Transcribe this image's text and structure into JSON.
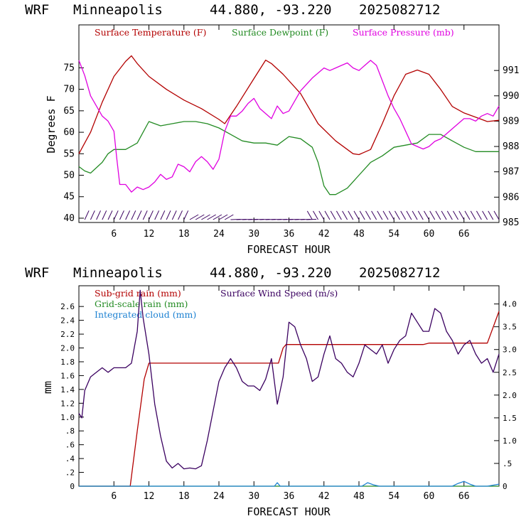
{
  "header": {
    "model": "WRF",
    "site": "Minneapolis",
    "coords": "44.880, -93.220",
    "run": "2025082712"
  },
  "colors": {
    "temperature": "#b30000",
    "dewpoint": "#238b23",
    "pressure": "#e000e0",
    "wind": "#3a0060",
    "subgrid_rain": "#b30000",
    "gridscale_rain": "#238b23",
    "cloud": "#1e82d2"
  },
  "chart_data": [
    {
      "type": "line",
      "xlabel": "FORECAST HOUR",
      "ylabel": "Degrees F",
      "xlim": [
        0,
        72
      ],
      "ylim": [
        39,
        85
      ],
      "y2lim": [
        985,
        992.8
      ],
      "x_ticks": [
        "6",
        "12",
        "18",
        "24",
        "30",
        "36",
        "42",
        "48",
        "54",
        "60",
        "66"
      ],
      "x_tick_values": [
        6,
        12,
        18,
        24,
        30,
        36,
        42,
        48,
        54,
        60,
        66
      ],
      "y_ticks": [
        "40",
        "45",
        "50",
        "55",
        "60",
        "65",
        "70",
        "75"
      ],
      "y_tick_values": [
        40,
        45,
        50,
        55,
        60,
        65,
        70,
        75
      ],
      "y2_ticks": [
        "985",
        "986",
        "987",
        "988",
        "989",
        "990",
        "991"
      ],
      "y2_tick_values": [
        985,
        986,
        987,
        988,
        989,
        990,
        991
      ],
      "legend_position": "top",
      "series": [
        {
          "name": "Surface Temperature (F)",
          "axis": "left",
          "x": [
            0,
            2,
            4,
            6,
            8,
            9,
            10,
            12,
            15,
            18,
            21,
            24,
            25,
            27,
            30,
            32,
            33,
            35,
            38,
            41,
            44,
            47,
            48,
            50,
            52,
            54,
            56,
            58,
            60,
            62,
            64,
            66,
            68,
            70,
            72
          ],
          "y": [
            55,
            60,
            67,
            73,
            76.5,
            77.8,
            76,
            73,
            70,
            67.5,
            65.5,
            63,
            62,
            66,
            72.5,
            76.8,
            76,
            73.5,
            69,
            62,
            58,
            55,
            54.8,
            56,
            62,
            68.5,
            73.5,
            74.5,
            73.5,
            70,
            66,
            64.5,
            63.5,
            62.5,
            62.8
          ]
        },
        {
          "name": "Surface Dewpoint (F)",
          "axis": "left",
          "x": [
            0,
            1,
            2,
            4,
            5,
            6,
            8,
            10,
            11,
            12,
            13,
            14,
            16,
            18,
            20,
            22,
            24,
            26,
            28,
            30,
            32,
            34,
            36,
            38,
            40,
            41,
            42,
            43,
            44,
            46,
            48,
            50,
            52,
            54,
            56,
            58,
            60,
            62,
            64,
            66,
            68,
            70,
            72
          ],
          "y": [
            52,
            51,
            50.5,
            53,
            55,
            56,
            56,
            57.5,
            60,
            62.5,
            62,
            61.5,
            62,
            62.5,
            62.5,
            62,
            61,
            59.5,
            58,
            57.5,
            57.5,
            57,
            59,
            58.5,
            56.5,
            53,
            47.5,
            45.5,
            45.5,
            47,
            50,
            53,
            54.5,
            56.5,
            57,
            57.5,
            59.5,
            59.5,
            58,
            56.5,
            55.5,
            55.5,
            55.5
          ]
        },
        {
          "name": "Surface Pressure (mb)",
          "axis": "right",
          "x": [
            0,
            1,
            2,
            3,
            4,
            5,
            6,
            6.5,
            7,
            8,
            9,
            10,
            11,
            12,
            13,
            14,
            15,
            16,
            17,
            18,
            19,
            20,
            21,
            22,
            23,
            24,
            25,
            26,
            27,
            28,
            29,
            30,
            31,
            32,
            33,
            34,
            35,
            36,
            38,
            40,
            42,
            43,
            44,
            45,
            46,
            47,
            48,
            49,
            50,
            51,
            52,
            53,
            54,
            55,
            56,
            57,
            58,
            59,
            60,
            61,
            62,
            63,
            64,
            65,
            66,
            67,
            68,
            69,
            70,
            71,
            72
          ],
          "y": [
            991.4,
            990.8,
            990,
            989.6,
            989.2,
            989,
            988.6,
            987.5,
            986.5,
            986.5,
            986.2,
            986.4,
            986.3,
            986.4,
            986.6,
            986.9,
            986.7,
            986.8,
            987.3,
            987.2,
            987.0,
            987.4,
            987.6,
            987.4,
            987.1,
            987.5,
            988.6,
            989.2,
            989.2,
            989.4,
            989.7,
            989.9,
            989.5,
            989.3,
            989.1,
            989.6,
            989.3,
            989.4,
            990.2,
            990.7,
            991.1,
            991.0,
            991.1,
            991.2,
            991.3,
            991.1,
            991.0,
            991.2,
            991.4,
            991.2,
            990.6,
            990.0,
            989.5,
            989.1,
            988.6,
            988.1,
            988.0,
            987.9,
            988.0,
            988.2,
            988.3,
            988.5,
            988.7,
            988.9,
            989.1,
            989.1,
            989.0,
            989.2,
            989.3,
            989.2,
            989.6
          ]
        }
      ],
      "wind_barb_hours": [
        1,
        2,
        3,
        4,
        5,
        6,
        7,
        8,
        9,
        10,
        11,
        12,
        13,
        14,
        15,
        16,
        17,
        18,
        19,
        20,
        21,
        22,
        23,
        24,
        25,
        26,
        27,
        28,
        29,
        30,
        31,
        32,
        33,
        34,
        35,
        36,
        37,
        38,
        39,
        40,
        41,
        42,
        43,
        44,
        45,
        46,
        47,
        48,
        49,
        50,
        51,
        52,
        53,
        54,
        55,
        56,
        57,
        58,
        59,
        60,
        61,
        62,
        63,
        64,
        65,
        66,
        67,
        68,
        69,
        70,
        71,
        72
      ]
    },
    {
      "type": "line",
      "xlabel": "FORECAST HOUR",
      "ylabel": "mm",
      "xlim": [
        0,
        72
      ],
      "ylim": [
        0,
        2.9
      ],
      "y2lim": [
        0,
        4.4
      ],
      "x_ticks": [
        "6",
        "12",
        "18",
        "24",
        "30",
        "36",
        "42",
        "48",
        "54",
        "60",
        "66"
      ],
      "x_tick_values": [
        6,
        12,
        18,
        24,
        30,
        36,
        42,
        48,
        54,
        60,
        66
      ],
      "y_ticks": [
        "0",
        ".2",
        ".4",
        ".6",
        ".8",
        "1.0",
        "1.2",
        "1.4",
        "1.6",
        "1.8",
        "2.0",
        "2.2",
        "2.4",
        "2.6"
      ],
      "y_tick_values": [
        0,
        0.2,
        0.4,
        0.6,
        0.8,
        1.0,
        1.2,
        1.4,
        1.6,
        1.8,
        2.0,
        2.2,
        2.4,
        2.6
      ],
      "y2_ticks": [
        "0",
        ".5",
        "1.0",
        "1.5",
        "2.0",
        "2.5",
        "3.0",
        "3.5",
        "4.0"
      ],
      "y2_tick_values": [
        0,
        0.5,
        1.0,
        1.5,
        2.0,
        2.5,
        3.0,
        3.5,
        4.0
      ],
      "legend_position": "top-left",
      "series": [
        {
          "name": "Sub-grid rain (mm)",
          "axis": "left",
          "x": [
            0,
            8.8,
            10,
            11.2,
            12,
            12.3,
            34.2,
            35,
            35.5,
            59,
            60,
            70,
            72
          ],
          "y": [
            0,
            0,
            0.8,
            1.55,
            1.78,
            1.78,
            1.78,
            2.0,
            2.05,
            2.05,
            2.07,
            2.07,
            2.53
          ]
        },
        {
          "name": "Grid-scale rain (mm)",
          "axis": "left",
          "x": [
            0,
            72
          ],
          "y": [
            0,
            0
          ]
        },
        {
          "name": "Integrated cloud (mm)",
          "axis": "left",
          "x": [
            0,
            33.5,
            34,
            34.5,
            35,
            48.5,
            49.5,
            50.5,
            51.5,
            64,
            65,
            66,
            67,
            68,
            70,
            72
          ],
          "y": [
            0,
            0,
            0.05,
            0,
            0,
            0,
            0.05,
            0.02,
            0,
            0,
            0.04,
            0.07,
            0.03,
            0,
            0,
            0.03
          ]
        },
        {
          "name": "Surface Wind Speed (m/s)",
          "axis": "right",
          "x": [
            0,
            0.5,
            1,
            2,
            3,
            4,
            5,
            6,
            7,
            8,
            9,
            10,
            10.5,
            11,
            12,
            13,
            14,
            15,
            16,
            17,
            18,
            19,
            20,
            21,
            22,
            23,
            24,
            25,
            26,
            27,
            28,
            29,
            30,
            31,
            32,
            33,
            33.5,
            34,
            35,
            36,
            37,
            38,
            39,
            40,
            41,
            42,
            43,
            44,
            45,
            46,
            47,
            48,
            49,
            50,
            51,
            52,
            53,
            54,
            55,
            56,
            57,
            58,
            59,
            60,
            61,
            62,
            63,
            64,
            65,
            66,
            67,
            68,
            69,
            70,
            71,
            72
          ],
          "y": [
            1.6,
            1.5,
            2.1,
            2.4,
            2.5,
            2.6,
            2.5,
            2.6,
            2.6,
            2.6,
            2.7,
            3.4,
            4.3,
            3.7,
            2.9,
            1.8,
            1.1,
            0.55,
            0.4,
            0.5,
            0.38,
            0.4,
            0.38,
            0.45,
            1.0,
            1.65,
            2.3,
            2.6,
            2.8,
            2.6,
            2.3,
            2.2,
            2.2,
            2.1,
            2.35,
            2.8,
            2.3,
            1.8,
            2.4,
            3.6,
            3.5,
            3.1,
            2.8,
            2.3,
            2.4,
            2.9,
            3.3,
            2.8,
            2.7,
            2.5,
            2.4,
            2.7,
            3.1,
            3.0,
            2.9,
            3.1,
            2.7,
            3.0,
            3.2,
            3.3,
            3.8,
            3.6,
            3.4,
            3.4,
            3.9,
            3.8,
            3.4,
            3.2,
            2.9,
            3.1,
            3.2,
            2.9,
            2.7,
            2.8,
            2.5,
            2.9
          ]
        }
      ]
    }
  ]
}
